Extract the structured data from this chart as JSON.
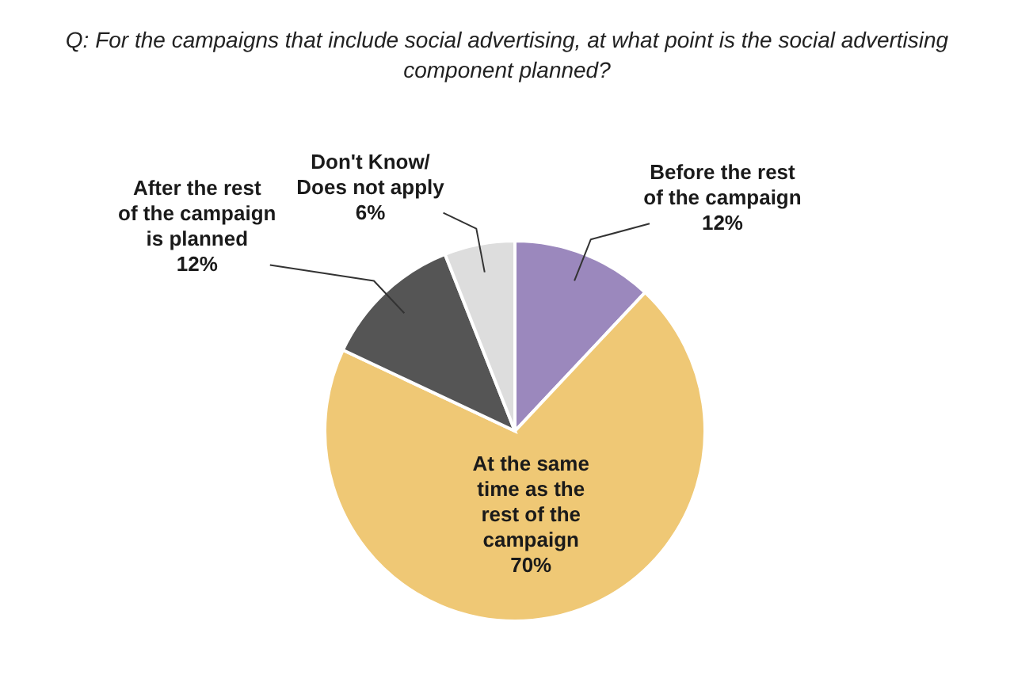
{
  "chart_data": {
    "type": "pie",
    "title": "Q: For the campaigns that include social advertising, at what point is the social advertising component planned?",
    "categories": [
      "Before the rest of the campaign",
      "At the same time as the rest of the campaign",
      "After the rest of the campaign is planned",
      "Don't Know/ Does not apply"
    ],
    "values": [
      12,
      70,
      12,
      6
    ],
    "value_labels": [
      "12%",
      "70%",
      "12%",
      "6%"
    ],
    "colors": [
      "#9b88bd",
      "#efc875",
      "#555555",
      "#dddddd"
    ]
  }
}
